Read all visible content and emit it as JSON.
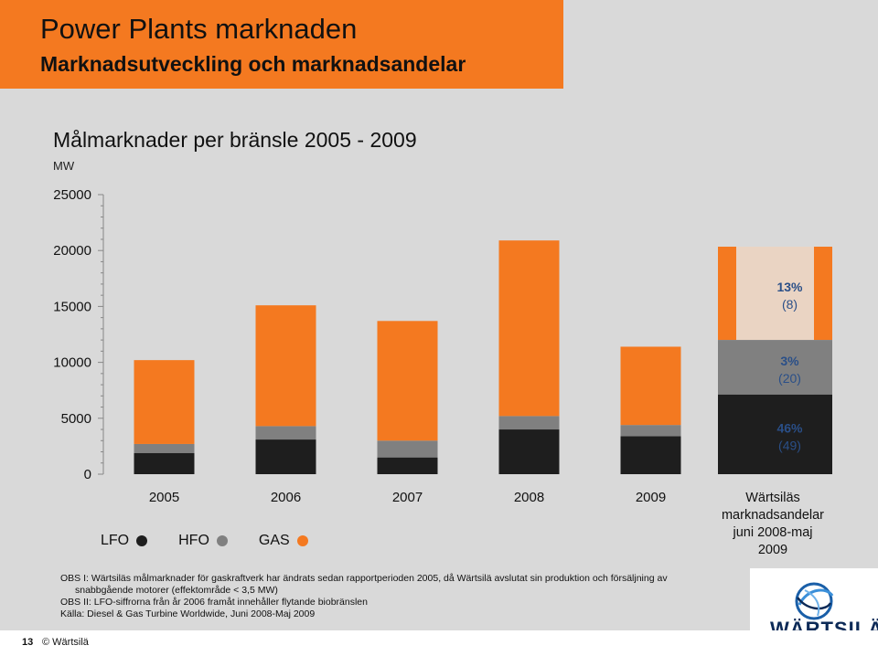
{
  "header": {
    "title": "Power Plants marknaden",
    "subtitle": "Marknadsutveckling och marknadsandelar"
  },
  "chart_data": {
    "type": "bar",
    "stacked": true,
    "title": "Målmarknader per bränsle 2005 - 2009",
    "ylabel": "MW",
    "xlabel": "",
    "categories": [
      "2005",
      "2006",
      "2007",
      "2008",
      "2009"
    ],
    "ylim": [
      0,
      25000
    ],
    "yticks": [
      "0",
      "5000",
      "10000",
      "15000",
      "20000",
      "25000"
    ],
    "series": [
      {
        "name": "LFO",
        "color": "#1e1e1e",
        "values": [
          1900,
          3100,
          1500,
          4000,
          3400
        ]
      },
      {
        "name": "HFO",
        "color": "#808080",
        "values": [
          800,
          1200,
          1500,
          1200,
          1000
        ]
      },
      {
        "name": "GAS",
        "color": "#f47920",
        "values": [
          7500,
          10800,
          10700,
          15700,
          7000
        ]
      }
    ],
    "legend": "bottom-left",
    "grid": false
  },
  "share": {
    "items": [
      {
        "pct": "13%",
        "rank": "(8)",
        "color": "#f47920",
        "height_fraction": 0.41
      },
      {
        "pct": "3%",
        "rank": "(20)",
        "color": "#808080",
        "height_fraction": 0.24
      },
      {
        "pct": "46%",
        "rank": "(49)",
        "color": "#1e1e1e",
        "height_fraction": 0.35
      }
    ],
    "caption": [
      "Wärtsiläs",
      "marknadsandelar",
      "juni 2008-maj",
      "2009"
    ]
  },
  "notes": {
    "line1": "OBS I: Wärtsiläs målmarknader för gaskraftverk har ändrats sedan rapportperioden 2005, då Wärtsilä avslutat sin produktion och försäljning av",
    "line2": "snabbgående motorer (effektområde < 3,5 MW)",
    "line3": "OBS II: LFO-siffrorna från år 2006 framåt innehåller flytande biobränslen",
    "line4": "Källa: Diesel & Gas Turbine Worldwide, Juni 2008-Maj 2009"
  },
  "footer": {
    "page_number": "13",
    "copyright": "© Wärtsilä"
  },
  "logo": {
    "text": "WÄRTSILÄ"
  }
}
